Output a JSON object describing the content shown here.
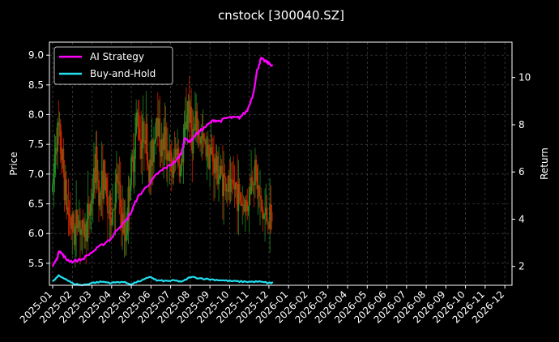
{
  "chart_data": {
    "type": "line",
    "title": "cnstock [300040.SZ]",
    "xlabel": "",
    "ylabel_left": "Price",
    "ylabel_right": "Return",
    "x_tick_labels": [
      "2025-01",
      "2025-02",
      "2025-03",
      "2025-04",
      "2025-05",
      "2025-06",
      "2025-07",
      "2025-08",
      "2025-09",
      "2025-10",
      "2025-11",
      "2025-12",
      "2026-01",
      "2026-02",
      "2026-03",
      "2026-04",
      "2026-05",
      "2026-06",
      "2026-07",
      "2026-08",
      "2026-09",
      "2026-10",
      "2026-11",
      "2026-12"
    ],
    "xlim_months": [
      0,
      23.2
    ],
    "price_ylim": [
      5.13,
      9.22
    ],
    "price_ticks": [
      "5.5",
      "6.0",
      "6.5",
      "7.0",
      "7.5",
      "8.0",
      "8.5",
      "9.0"
    ],
    "return_ylim": [
      1.2,
      11.5
    ],
    "return_ticks": [
      "2",
      "4",
      "6",
      "8",
      "10"
    ],
    "grid": true,
    "legend_position": "top-left",
    "colors": {
      "background": "#000000",
      "up_candle": "#228b22",
      "down_candle": "#cc2200",
      "strategy": "#ff00ff",
      "buy_and_hold": "#22e0f0",
      "grid": "#555555",
      "text": "#ffffff"
    },
    "series": [
      {
        "name": "AI Strategy",
        "points": [
          [
            0,
            2.0
          ],
          [
            0.2,
            2.3
          ],
          [
            0.35,
            2.7
          ],
          [
            0.5,
            2.5
          ],
          [
            0.7,
            2.3
          ],
          [
            1.0,
            2.2
          ],
          [
            1.5,
            2.3
          ],
          [
            2.0,
            2.6
          ],
          [
            2.5,
            2.9
          ],
          [
            3.0,
            3.2
          ],
          [
            3.3,
            3.6
          ],
          [
            3.7,
            3.9
          ],
          [
            4.0,
            4.3
          ],
          [
            4.3,
            4.9
          ],
          [
            4.6,
            5.2
          ],
          [
            5.0,
            5.6
          ],
          [
            5.3,
            5.9
          ],
          [
            5.6,
            6.1
          ],
          [
            6.0,
            6.3
          ],
          [
            6.3,
            6.5
          ],
          [
            6.55,
            6.8
          ],
          [
            6.7,
            7.4
          ],
          [
            7.0,
            7.3
          ],
          [
            7.3,
            7.6
          ],
          [
            7.6,
            7.8
          ],
          [
            7.9,
            8.0
          ],
          [
            8.2,
            8.2
          ],
          [
            8.5,
            8.15
          ],
          [
            8.9,
            8.3
          ],
          [
            9.2,
            8.3
          ],
          [
            9.5,
            8.3
          ],
          [
            9.9,
            8.6
          ],
          [
            10.2,
            9.3
          ],
          [
            10.4,
            10.3
          ],
          [
            10.6,
            10.8
          ],
          [
            10.8,
            10.7
          ],
          [
            11.0,
            10.6
          ],
          [
            11.2,
            10.5
          ]
        ]
      },
      {
        "name": "Buy-and-Hold",
        "points": [
          [
            0,
            1.35
          ],
          [
            0.3,
            1.6
          ],
          [
            0.6,
            1.5
          ],
          [
            1.0,
            1.28
          ],
          [
            1.5,
            1.2
          ],
          [
            2.0,
            1.3
          ],
          [
            2.5,
            1.35
          ],
          [
            3.0,
            1.3
          ],
          [
            3.5,
            1.35
          ],
          [
            4.0,
            1.25
          ],
          [
            4.5,
            1.4
          ],
          [
            5.0,
            1.55
          ],
          [
            5.3,
            1.4
          ],
          [
            5.8,
            1.38
          ],
          [
            6.2,
            1.4
          ],
          [
            6.6,
            1.35
          ],
          [
            7.0,
            1.55
          ],
          [
            7.5,
            1.5
          ],
          [
            8.0,
            1.45
          ],
          [
            8.5,
            1.42
          ],
          [
            9.0,
            1.38
          ],
          [
            9.5,
            1.36
          ],
          [
            10.0,
            1.35
          ],
          [
            10.5,
            1.35
          ],
          [
            11.0,
            1.3
          ],
          [
            11.2,
            1.3
          ]
        ]
      }
    ],
    "price_path": [
      [
        0,
        6.7
      ],
      [
        0.15,
        7.6
      ],
      [
        0.3,
        7.7
      ],
      [
        0.5,
        7.2
      ],
      [
        0.7,
        6.5
      ],
      [
        0.9,
        6.2
      ],
      [
        1.1,
        6.0
      ],
      [
        1.3,
        6.3
      ],
      [
        1.5,
        6.0
      ],
      [
        1.7,
        6.1
      ],
      [
        2.0,
        6.6
      ],
      [
        2.2,
        7.2
      ],
      [
        2.4,
        6.6
      ],
      [
        2.6,
        7.0
      ],
      [
        2.8,
        6.4
      ],
      [
        3.0,
        6.3
      ],
      [
        3.3,
        6.9
      ],
      [
        3.5,
        6.3
      ],
      [
        3.7,
        5.9
      ],
      [
        3.9,
        6.8
      ],
      [
        4.1,
        7.3
      ],
      [
        4.3,
        8.0
      ],
      [
        4.5,
        7.5
      ],
      [
        4.7,
        7.8
      ],
      [
        4.9,
        7.0
      ],
      [
        5.1,
        7.4
      ],
      [
        5.3,
        8.1
      ],
      [
        5.5,
        7.4
      ],
      [
        5.7,
        7.6
      ],
      [
        5.9,
        7.3
      ],
      [
        6.1,
        7.0
      ],
      [
        6.3,
        7.5
      ],
      [
        6.5,
        7.0
      ],
      [
        6.7,
        7.6
      ],
      [
        6.9,
        8.2
      ],
      [
        7.1,
        7.6
      ],
      [
        7.3,
        7.8
      ],
      [
        7.5,
        7.6
      ],
      [
        7.7,
        7.5
      ],
      [
        7.9,
        7.4
      ],
      [
        8.1,
        7.3
      ],
      [
        8.3,
        7.1
      ],
      [
        8.5,
        7.0
      ],
      [
        8.7,
        6.9
      ],
      [
        8.9,
        6.8
      ],
      [
        9.1,
        6.7
      ],
      [
        9.3,
        6.8
      ],
      [
        9.5,
        6.6
      ],
      [
        9.7,
        6.5
      ],
      [
        9.9,
        6.5
      ],
      [
        10.1,
        6.9
      ],
      [
        10.3,
        7.1
      ],
      [
        10.5,
        6.6
      ],
      [
        10.7,
        6.3
      ],
      [
        10.9,
        6.3
      ],
      [
        11.1,
        6.2
      ],
      [
        11.2,
        6.3
      ]
    ]
  },
  "legend": {
    "strategy_label": "AI Strategy",
    "buy_and_hold_label": "Buy-and-Hold"
  }
}
